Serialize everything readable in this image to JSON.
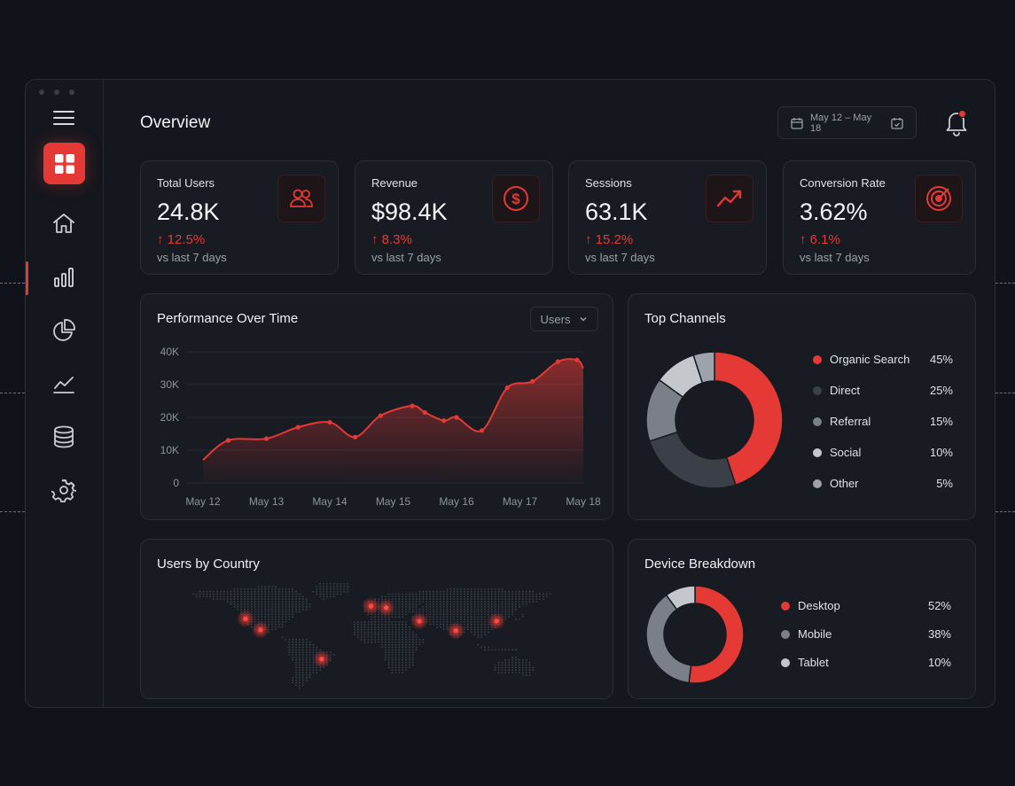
{
  "page": {
    "title": "Overview"
  },
  "header": {
    "date_range": "May 12 – May 18"
  },
  "colors": {
    "accent": "#e53935",
    "background": "#10131a",
    "card": "#181b22"
  },
  "sidebar": {
    "items": [
      {
        "icon": "menu-icon"
      },
      {
        "icon": "dashboard-grid-icon",
        "active_logo": true
      },
      {
        "icon": "home-icon"
      },
      {
        "icon": "bar-chart-icon",
        "active": true
      },
      {
        "icon": "pie-chart-icon"
      },
      {
        "icon": "trend-line-icon"
      },
      {
        "icon": "database-icon"
      },
      {
        "icon": "settings-gear-icon"
      }
    ]
  },
  "stats": [
    {
      "label": "Total Users",
      "value": "24.8K",
      "change": "12.5%",
      "sub": "vs last 7 days",
      "icon": "users-icon"
    },
    {
      "label": "Revenue",
      "value": "$98.4K",
      "change": "8.3%",
      "sub": "vs last 7 days",
      "icon": "dollar-icon"
    },
    {
      "label": "Sessions",
      "value": "63.1K",
      "change": "15.2%",
      "sub": "vs last 7 days",
      "icon": "trend-up-icon"
    },
    {
      "label": "Conversion Rate",
      "value": "3.62%",
      "change": "6.1%",
      "sub": "vs last 7 days",
      "icon": "target-icon"
    }
  ],
  "performance": {
    "title": "Performance Over Time",
    "dropdown": "Users"
  },
  "channels": {
    "title": "Top Channels"
  },
  "country": {
    "title": "Users by Country"
  },
  "devices": {
    "title": "Device Breakdown"
  },
  "chart_data": [
    {
      "type": "area",
      "title": "Performance Over Time",
      "categories": [
        "May 12",
        "May 13",
        "May 14",
        "May 15",
        "May 16",
        "May 17",
        "May 18"
      ],
      "yticks": [
        "0",
        "10K",
        "20K",
        "30K",
        "40K"
      ],
      "ylim": [
        0,
        40000
      ],
      "series": [
        {
          "name": "Users",
          "x": [
            0,
            0.4,
            1.0,
            1.5,
            2.0,
            2.4,
            2.8,
            3.3,
            3.5,
            3.8,
            4.0,
            4.4,
            4.8,
            5.2,
            5.6,
            5.9,
            6.0
          ],
          "values": [
            7000,
            13000,
            13500,
            17000,
            18500,
            14000,
            20500,
            23500,
            21500,
            19000,
            20000,
            16000,
            29000,
            31000,
            37000,
            37500,
            35000
          ]
        }
      ],
      "line_color": "#e53935",
      "grid": true
    },
    {
      "type": "pie",
      "title": "Top Channels",
      "donut": true,
      "slices": [
        {
          "label": "Organic Search",
          "value": 45,
          "pct": "45%",
          "color": "#e53935"
        },
        {
          "label": "Direct",
          "value": 25,
          "pct": "25%",
          "color": "#3b3f47"
        },
        {
          "label": "Referral",
          "value": 15,
          "pct": "15%",
          "color": "#7a7f88"
        },
        {
          "label": "Social",
          "value": 10,
          "pct": "10%",
          "color": "#c4c7cc"
        },
        {
          "label": "Other",
          "value": 5,
          "pct": "5%",
          "color": "#9ea3ab"
        }
      ]
    },
    {
      "type": "pie",
      "title": "Device Breakdown",
      "donut": true,
      "slices": [
        {
          "label": "Desktop",
          "value": 52,
          "pct": "52%",
          "color": "#e53935"
        },
        {
          "label": "Mobile",
          "value": 38,
          "pct": "38%",
          "color": "#7a7f88"
        },
        {
          "label": "Tablet",
          "value": 10,
          "pct": "10%",
          "color": "#c4c7cc"
        }
      ]
    }
  ],
  "map": {
    "hotspots": [
      {
        "name": "north-america-west",
        "lon": -118,
        "lat": 36
      },
      {
        "name": "mexico",
        "lon": -104,
        "lat": 22
      },
      {
        "name": "brazil",
        "lon": -47,
        "lat": -15
      },
      {
        "name": "uk",
        "lon": -1,
        "lat": 52
      },
      {
        "name": "central-europe",
        "lon": 13,
        "lat": 50
      },
      {
        "name": "middle-east",
        "lon": 44,
        "lat": 33
      },
      {
        "name": "india",
        "lon": 78,
        "lat": 21
      },
      {
        "name": "china",
        "lon": 116,
        "lat": 33
      }
    ]
  }
}
